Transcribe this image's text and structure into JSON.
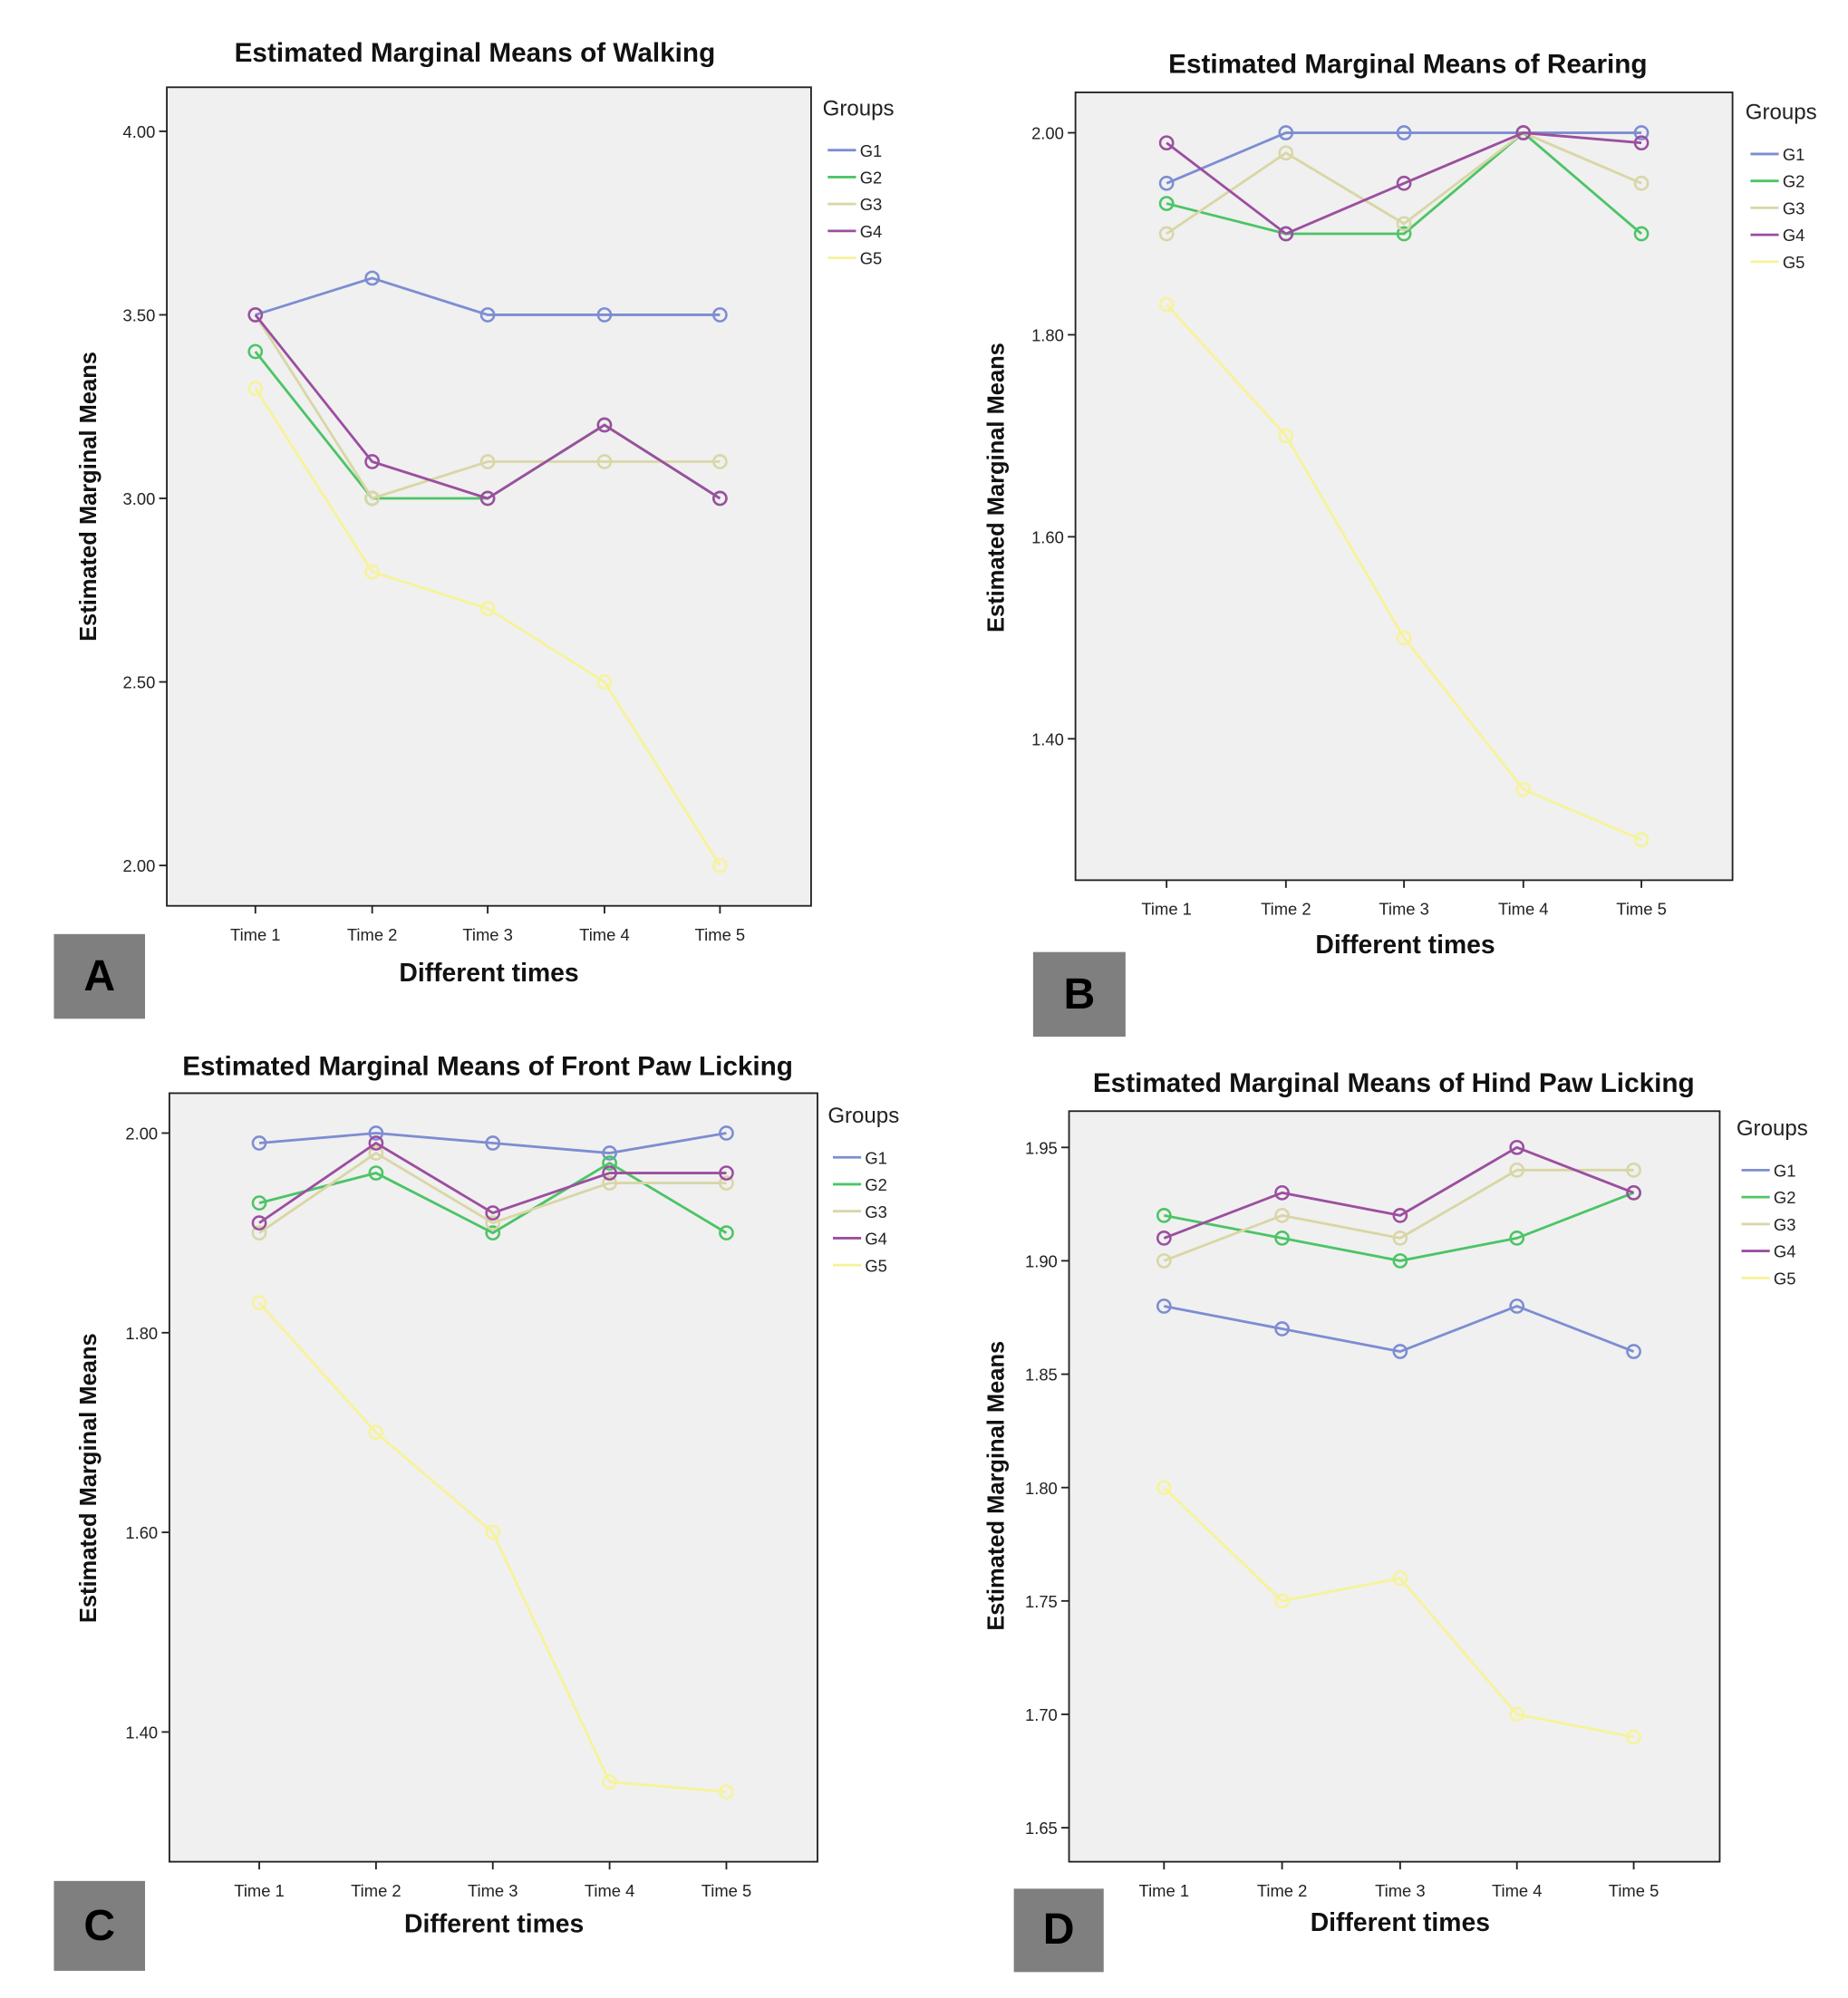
{
  "legend_title": "Groups",
  "group_names": [
    "G1",
    "G2",
    "G3",
    "G4",
    "G5"
  ],
  "group_colors": [
    "#7d8dd2",
    "#4cc466",
    "#d9d6a6",
    "#9b4f9f",
    "#f6f39a"
  ],
  "panel_labels": [
    "A",
    "B",
    "C",
    "D"
  ],
  "chart_data": [
    {
      "type": "line",
      "title": "Estimated Marginal Means of Walking",
      "xlabel": "Different times",
      "ylabel": "Estimated Marginal Means",
      "categories": [
        "Time 1",
        "Time 2",
        "Time 3",
        "Time 4",
        "Time 5"
      ],
      "yticks": [
        "2.00",
        "2.50",
        "3.00",
        "3.50",
        "4.00"
      ],
      "ylim": [
        1.89,
        4.12
      ],
      "legend": "right",
      "grid": false,
      "series": [
        {
          "name": "G1",
          "values": [
            3.5,
            3.6,
            3.5,
            3.5,
            3.5
          ]
        },
        {
          "name": "G2",
          "values": [
            3.4,
            3.0,
            3.0,
            3.2,
            3.0
          ]
        },
        {
          "name": "G3",
          "values": [
            3.5,
            3.0,
            3.1,
            3.1,
            3.1
          ]
        },
        {
          "name": "G4",
          "values": [
            3.5,
            3.1,
            3.0,
            3.2,
            3.0
          ]
        },
        {
          "name": "G5",
          "values": [
            3.3,
            2.8,
            2.7,
            2.5,
            2.0
          ]
        }
      ]
    },
    {
      "type": "line",
      "title": "Estimated Marginal Means of Rearing",
      "xlabel": "Different times",
      "ylabel": "Estimated Marginal Means",
      "categories": [
        "Time 1",
        "Time 2",
        "Time 3",
        "Time 4",
        "Time 5"
      ],
      "yticks": [
        "1.40",
        "1.60",
        "1.80",
        "2.00"
      ],
      "ylim": [
        1.26,
        2.04
      ],
      "legend": "right",
      "grid": false,
      "series": [
        {
          "name": "G1",
          "values": [
            1.95,
            2.0,
            2.0,
            2.0,
            2.0
          ]
        },
        {
          "name": "G2",
          "values": [
            1.93,
            1.9,
            1.9,
            2.0,
            1.9
          ]
        },
        {
          "name": "G3",
          "values": [
            1.9,
            1.98,
            1.91,
            2.0,
            1.95
          ]
        },
        {
          "name": "G4",
          "values": [
            1.99,
            1.9,
            1.95,
            2.0,
            1.99
          ]
        },
        {
          "name": "G5",
          "values": [
            1.83,
            1.7,
            1.5,
            1.35,
            1.3
          ]
        }
      ]
    },
    {
      "type": "line",
      "title": "Estimated Marginal Means of Front Paw Licking",
      "xlabel": "Different times",
      "ylabel": "Estimated Marginal Means",
      "categories": [
        "Time 1",
        "Time 2",
        "Time 3",
        "Time 4",
        "Time 5"
      ],
      "yticks": [
        "1.40",
        "1.60",
        "1.80",
        "2.00"
      ],
      "ylim": [
        1.27,
        2.04
      ],
      "legend": "right",
      "grid": false,
      "series": [
        {
          "name": "G1",
          "values": [
            1.99,
            2.0,
            1.99,
            1.98,
            2.0
          ]
        },
        {
          "name": "G2",
          "values": [
            1.93,
            1.96,
            1.9,
            1.97,
            1.9
          ]
        },
        {
          "name": "G3",
          "values": [
            1.9,
            1.98,
            1.91,
            1.95,
            1.95
          ]
        },
        {
          "name": "G4",
          "values": [
            1.91,
            1.99,
            1.92,
            1.96,
            1.96
          ]
        },
        {
          "name": "G5",
          "values": [
            1.83,
            1.7,
            1.6,
            1.35,
            1.34
          ]
        }
      ]
    },
    {
      "type": "line",
      "title": "Estimated Marginal Means of Hind Paw Licking",
      "xlabel": "Different times",
      "ylabel": "Estimated Marginal Means",
      "categories": [
        "Time 1",
        "Time 2",
        "Time 3",
        "Time 4",
        "Time 5"
      ],
      "yticks": [
        "1.65",
        "1.70",
        "1.75",
        "1.80",
        "1.85",
        "1.90",
        "1.95"
      ],
      "ylim": [
        1.635,
        1.966
      ],
      "legend": "right",
      "grid": false,
      "series": [
        {
          "name": "G1",
          "values": [
            1.88,
            1.87,
            1.86,
            1.88,
            1.86
          ]
        },
        {
          "name": "G2",
          "values": [
            1.92,
            1.91,
            1.9,
            1.91,
            1.93
          ]
        },
        {
          "name": "G3",
          "values": [
            1.9,
            1.92,
            1.91,
            1.94,
            1.94
          ]
        },
        {
          "name": "G4",
          "values": [
            1.91,
            1.93,
            1.92,
            1.95,
            1.93
          ]
        },
        {
          "name": "G5",
          "values": [
            1.8,
            1.75,
            1.76,
            1.7,
            1.69
          ]
        }
      ]
    }
  ]
}
